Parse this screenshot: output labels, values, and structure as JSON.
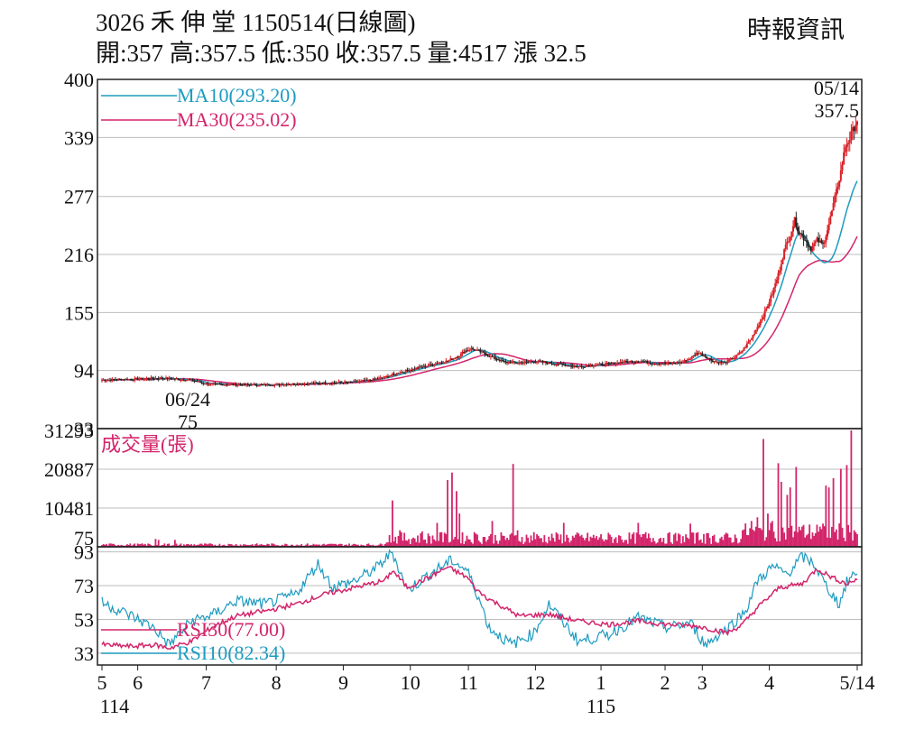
{
  "header": {
    "title": "3026  禾 伸 堂 1150514(日線圖)",
    "source": "時報資訊",
    "quote": "開:357 高:357.5 低:350 收:357.5 量:4517 漲 32.5"
  },
  "colors": {
    "up": "#d81f26",
    "down": "#222222",
    "ma10": "#1e9bc0",
    "ma30": "#d3256b",
    "volume": "#d3256b",
    "rsi30": "#d3256b",
    "rsi10": "#1e9bc0",
    "grid": "#bdbdbd",
    "frame": "#222222"
  },
  "chart_data": [
    {
      "type": "candlestick",
      "yticks": [
        "400",
        "339",
        "277",
        "216",
        "155",
        "94",
        "33"
      ],
      "ytick_values": [
        400,
        339,
        277,
        216,
        155,
        94,
        33
      ],
      "ylim": [
        33,
        400
      ],
      "legend": [
        {
          "key": "ma10",
          "label": "MA10(293.20)"
        },
        {
          "key": "ma30",
          "label": "MA30(235.02)"
        }
      ],
      "annotations": {
        "high_date": "05/14",
        "high_value": "357.5",
        "low_date": "06/24",
        "low_value": "75"
      },
      "ma10_end": 293.2,
      "ma30_end": 235.02,
      "price_anchors": [
        [
          0,
          84
        ],
        [
          20,
          85
        ],
        [
          40,
          86
        ],
        [
          60,
          84
        ],
        [
          70,
          80
        ],
        [
          90,
          79
        ],
        [
          110,
          79
        ],
        [
          130,
          80
        ],
        [
          150,
          81
        ],
        [
          170,
          82
        ],
        [
          180,
          84
        ],
        [
          190,
          87
        ],
        [
          200,
          92
        ],
        [
          210,
          96
        ],
        [
          218,
          99
        ],
        [
          225,
          102
        ],
        [
          232,
          104
        ],
        [
          240,
          110
        ],
        [
          244,
          115
        ],
        [
          248,
          117
        ],
        [
          255,
          113
        ],
        [
          262,
          108
        ],
        [
          270,
          103
        ],
        [
          280,
          102
        ],
        [
          290,
          104
        ],
        [
          300,
          102
        ],
        [
          310,
          100
        ],
        [
          320,
          98
        ],
        [
          330,
          100
        ],
        [
          340,
          101
        ],
        [
          350,
          103
        ],
        [
          360,
          104
        ],
        [
          365,
          103
        ],
        [
          370,
          102
        ],
        [
          380,
          101
        ],
        [
          390,
          103
        ],
        [
          395,
          107
        ],
        [
          400,
          113
        ],
        [
          404,
          110
        ],
        [
          410,
          104
        ],
        [
          418,
          102
        ],
        [
          425,
          108
        ],
        [
          430,
          115
        ],
        [
          436,
          128
        ],
        [
          440,
          140
        ],
        [
          445,
          155
        ],
        [
          450,
          175
        ],
        [
          454,
          195
        ],
        [
          458,
          220
        ],
        [
          462,
          237
        ],
        [
          465,
          252
        ],
        [
          468,
          239
        ],
        [
          472,
          232
        ],
        [
          476,
          222
        ],
        [
          480,
          231
        ],
        [
          484,
          226
        ],
        [
          488,
          248
        ],
        [
          492,
          275
        ],
        [
          496,
          303
        ],
        [
          499,
          330
        ],
        [
          502,
          338
        ],
        [
          505,
          350
        ],
        [
          507,
          357.5
        ]
      ]
    },
    {
      "type": "bar",
      "title": "成交量(張)",
      "yticks": [
        "31293",
        "20887",
        "10481",
        "75"
      ],
      "ytick_values": [
        31293,
        20887,
        10481,
        75
      ],
      "ylim": [
        75,
        31293
      ],
      "spikes": [
        [
          195,
          12500
        ],
        [
          200,
          4500
        ],
        [
          215,
          4200
        ],
        [
          225,
          6500
        ],
        [
          228,
          4000
        ],
        [
          232,
          18000
        ],
        [
          235,
          20000
        ],
        [
          238,
          15000
        ],
        [
          240,
          9000
        ],
        [
          250,
          4000
        ],
        [
          262,
          7000
        ],
        [
          276,
          22300
        ],
        [
          279,
          4500
        ],
        [
          290,
          4000
        ],
        [
          310,
          6500
        ],
        [
          360,
          6500
        ],
        [
          365,
          4000
        ],
        [
          395,
          6300
        ],
        [
          400,
          4000
        ],
        [
          404,
          3500
        ],
        [
          410,
          3000
        ],
        [
          430,
          4500
        ],
        [
          436,
          7000
        ],
        [
          440,
          8000
        ],
        [
          444,
          29000
        ],
        [
          447,
          9000
        ],
        [
          450,
          7000
        ],
        [
          454,
          22500
        ],
        [
          456,
          17500
        ],
        [
          460,
          14000
        ],
        [
          462,
          16000
        ],
        [
          466,
          21500
        ],
        [
          470,
          5500
        ],
        [
          480,
          6000
        ],
        [
          486,
          16500
        ],
        [
          488,
          16000
        ],
        [
          491,
          18500
        ],
        [
          496,
          21000
        ],
        [
          500,
          22000
        ],
        [
          503,
          31293
        ],
        [
          505,
          4517
        ]
      ]
    },
    {
      "type": "line",
      "yticks": [
        "93",
        "73",
        "53",
        "33"
      ],
      "ytick_values": [
        93,
        73,
        53,
        33
      ],
      "ylim": [
        26,
        96
      ],
      "legend": [
        {
          "key": "rsi30",
          "label": "RSI30(77.00)"
        },
        {
          "key": "rsi10",
          "label": "RSI10(82.34)"
        }
      ],
      "rsi30_anchors": [
        [
          0,
          38
        ],
        [
          20,
          37
        ],
        [
          35,
          38
        ],
        [
          45,
          36
        ],
        [
          60,
          40
        ],
        [
          75,
          49
        ],
        [
          90,
          55
        ],
        [
          110,
          58
        ],
        [
          130,
          62
        ],
        [
          150,
          68
        ],
        [
          170,
          72
        ],
        [
          190,
          76
        ],
        [
          195,
          82
        ],
        [
          205,
          72
        ],
        [
          220,
          78
        ],
        [
          232,
          84
        ],
        [
          245,
          78
        ],
        [
          252,
          70
        ],
        [
          260,
          65
        ],
        [
          280,
          55
        ],
        [
          300,
          56
        ],
        [
          320,
          52
        ],
        [
          340,
          50
        ],
        [
          360,
          52
        ],
        [
          380,
          50
        ],
        [
          400,
          49
        ],
        [
          420,
          45
        ],
        [
          430,
          50
        ],
        [
          440,
          60
        ],
        [
          455,
          72
        ],
        [
          470,
          74
        ],
        [
          480,
          83
        ],
        [
          490,
          78
        ],
        [
          500,
          74
        ],
        [
          507,
          77
        ]
      ],
      "rsi10_anchors": [
        [
          0,
          63
        ],
        [
          20,
          55
        ],
        [
          35,
          48
        ],
        [
          45,
          38
        ],
        [
          60,
          52
        ],
        [
          75,
          56
        ],
        [
          90,
          64
        ],
        [
          110,
          62
        ],
        [
          130,
          68
        ],
        [
          145,
          86
        ],
        [
          155,
          72
        ],
        [
          170,
          76
        ],
        [
          185,
          84
        ],
        [
          195,
          93
        ],
        [
          205,
          70
        ],
        [
          220,
          80
        ],
        [
          235,
          88
        ],
        [
          245,
          82
        ],
        [
          252,
          68
        ],
        [
          260,
          48
        ],
        [
          275,
          38
        ],
        [
          290,
          45
        ],
        [
          300,
          62
        ],
        [
          320,
          40
        ],
        [
          340,
          44
        ],
        [
          360,
          54
        ],
        [
          380,
          48
        ],
        [
          395,
          51
        ],
        [
          405,
          38
        ],
        [
          420,
          48
        ],
        [
          432,
          58
        ],
        [
          440,
          76
        ],
        [
          450,
          84
        ],
        [
          460,
          80
        ],
        [
          470,
          90
        ],
        [
          478,
          86
        ],
        [
          486,
          73
        ],
        [
          495,
          62
        ],
        [
          500,
          75
        ],
        [
          507,
          82
        ]
      ]
    }
  ],
  "x_axis": {
    "months": [
      {
        "label": "5",
        "pos": 0
      },
      {
        "label": "6",
        "pos": 24
      },
      {
        "label": "7",
        "pos": 70
      },
      {
        "label": "8",
        "pos": 117
      },
      {
        "label": "9",
        "pos": 162
      },
      {
        "label": "10",
        "pos": 207
      },
      {
        "label": "11",
        "pos": 246
      },
      {
        "label": "12",
        "pos": 291
      },
      {
        "label": "1",
        "pos": 335
      },
      {
        "label": "2",
        "pos": 378
      },
      {
        "label": "3",
        "pos": 403
      },
      {
        "label": "4",
        "pos": 448
      },
      {
        "label": "5/14",
        "pos": 507
      }
    ],
    "years": [
      {
        "label": "114",
        "pos": 0
      },
      {
        "label": "115",
        "pos": 335
      }
    ]
  }
}
